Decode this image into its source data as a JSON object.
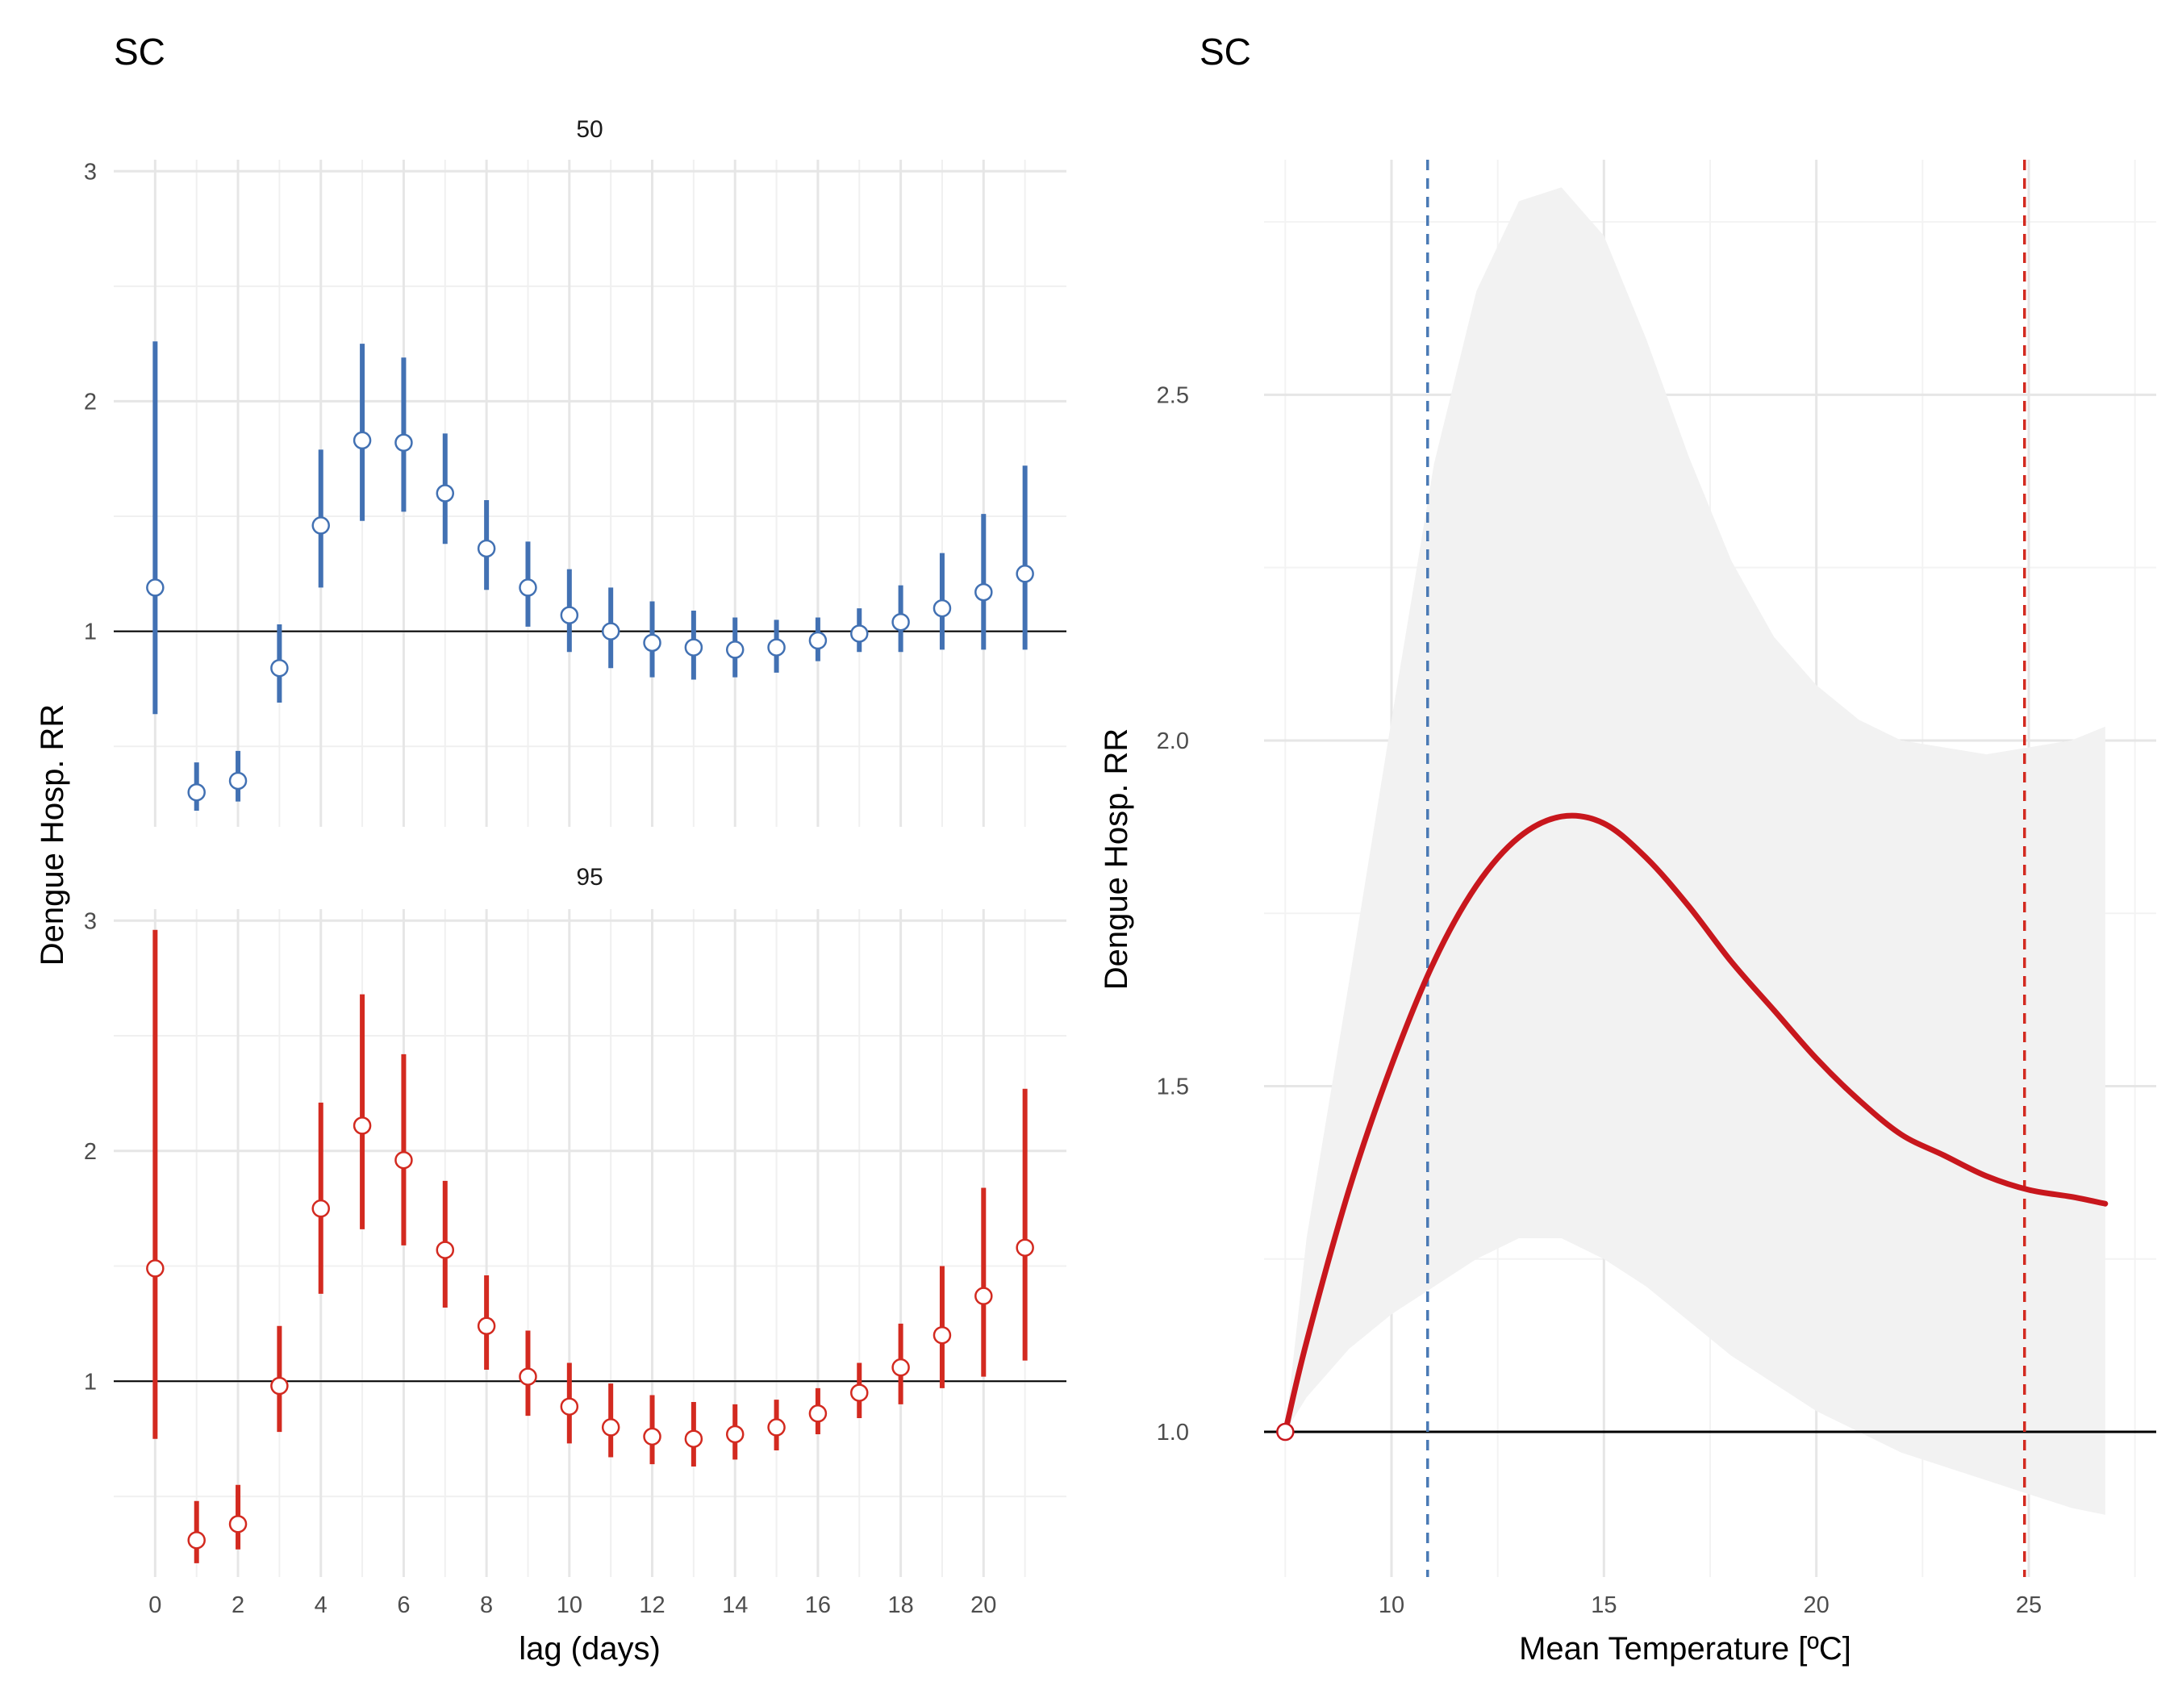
{
  "chart_data": [
    {
      "type": "scatter",
      "title": "SC",
      "xlabel": "lag (days)",
      "ylabel": "Dengue Hosp. RR",
      "x_ticks": [
        "0",
        "2",
        "4",
        "6",
        "8",
        "10",
        "12",
        "14",
        "16",
        "18",
        "20"
      ],
      "y_ticks": [
        "1",
        "2",
        "3"
      ],
      "ylim": [
        0.15,
        3.05
      ],
      "xlim": [
        -1,
        22
      ],
      "reference_line": 1,
      "facets": [
        {
          "name": "50",
          "color": "#4271b3",
          "lag": [
            0,
            1,
            2,
            3,
            4,
            5,
            6,
            7,
            8,
            9,
            10,
            11,
            12,
            13,
            14,
            15,
            16,
            17,
            18,
            19,
            20,
            21
          ],
          "estimate": [
            1.19,
            0.3,
            0.35,
            0.84,
            1.46,
            1.83,
            1.82,
            1.6,
            1.36,
            1.19,
            1.07,
            1.0,
            0.95,
            0.93,
            0.92,
            0.93,
            0.96,
            0.99,
            1.04,
            1.1,
            1.17,
            1.25
          ],
          "lower": [
            0.64,
            0.22,
            0.26,
            0.69,
            1.19,
            1.48,
            1.52,
            1.38,
            1.18,
            1.02,
            0.91,
            0.84,
            0.8,
            0.79,
            0.8,
            0.82,
            0.87,
            0.91,
            0.91,
            0.92,
            0.92,
            0.92
          ],
          "upper": [
            2.26,
            0.43,
            0.48,
            1.03,
            1.79,
            2.25,
            2.19,
            1.86,
            1.57,
            1.39,
            1.27,
            1.19,
            1.13,
            1.09,
            1.06,
            1.05,
            1.06,
            1.1,
            1.2,
            1.34,
            1.51,
            1.72
          ]
        },
        {
          "name": "95",
          "color": "#d32a20",
          "lag": [
            0,
            1,
            2,
            3,
            4,
            5,
            6,
            7,
            8,
            9,
            10,
            11,
            12,
            13,
            14,
            15,
            16,
            17,
            18,
            19,
            20,
            21
          ],
          "estimate": [
            1.49,
            0.31,
            0.38,
            0.98,
            1.75,
            2.11,
            1.96,
            1.57,
            1.24,
            1.02,
            0.89,
            0.8,
            0.76,
            0.75,
            0.77,
            0.8,
            0.86,
            0.95,
            1.06,
            1.2,
            1.37,
            1.58
          ],
          "lower": [
            0.75,
            0.21,
            0.27,
            0.78,
            1.38,
            1.66,
            1.59,
            1.32,
            1.05,
            0.85,
            0.73,
            0.67,
            0.64,
            0.63,
            0.66,
            0.7,
            0.77,
            0.84,
            0.9,
            0.97,
            1.02,
            1.09
          ],
          "upper": [
            2.96,
            0.48,
            0.55,
            1.24,
            2.21,
            2.68,
            2.42,
            1.87,
            1.46,
            1.22,
            1.08,
            0.99,
            0.94,
            0.91,
            0.9,
            0.92,
            0.97,
            1.08,
            1.25,
            1.5,
            1.84,
            2.27
          ]
        }
      ]
    },
    {
      "type": "line",
      "title": "SC",
      "xlabel": "Mean Temperature [ºC]",
      "ylabel": "Dengue Hosp. RR",
      "x_ticks": [
        "10",
        "15",
        "20",
        "25"
      ],
      "y_ticks": [
        "1.0",
        "1.5",
        "2.0",
        "2.5"
      ],
      "xlim": [
        7.0,
        28.0
      ],
      "ylim": [
        0.79,
        2.84
      ],
      "reference_line": 1,
      "line_color": "#c8171d",
      "band_color": "#f2f2f2",
      "vlines": [
        {
          "x": 10.85,
          "color": "#4a7ab5"
        },
        {
          "x": 24.9,
          "color": "#d32a20"
        }
      ],
      "reference_point": {
        "x": 7.5,
        "y": 1.0
      },
      "series": [
        {
          "x": [
            7.5,
            8.0,
            9.0,
            10.0,
            11.0,
            12.0,
            13.0,
            14.0,
            15.0,
            16.0,
            17.0,
            18.0,
            19.0,
            20.0,
            21.0,
            22.0,
            23.0,
            24.0,
            25.0,
            26.0,
            26.8
          ],
          "y": [
            1.0,
            1.13,
            1.35,
            1.53,
            1.68,
            1.79,
            1.86,
            1.89,
            1.88,
            1.83,
            1.76,
            1.68,
            1.61,
            1.54,
            1.48,
            1.43,
            1.4,
            1.37,
            1.35,
            1.34,
            1.33
          ],
          "lower": [
            1.0,
            1.05,
            1.12,
            1.17,
            1.21,
            1.25,
            1.28,
            1.28,
            1.25,
            1.21,
            1.16,
            1.11,
            1.07,
            1.03,
            1.0,
            0.97,
            0.95,
            0.93,
            0.91,
            0.89,
            0.88
          ],
          "upper": [
            1.0,
            1.28,
            1.65,
            2.03,
            2.4,
            2.65,
            2.78,
            2.8,
            2.73,
            2.58,
            2.41,
            2.26,
            2.15,
            2.08,
            2.03,
            2.0,
            1.99,
            1.98,
            1.99,
            2.0,
            2.02
          ]
        }
      ]
    }
  ]
}
